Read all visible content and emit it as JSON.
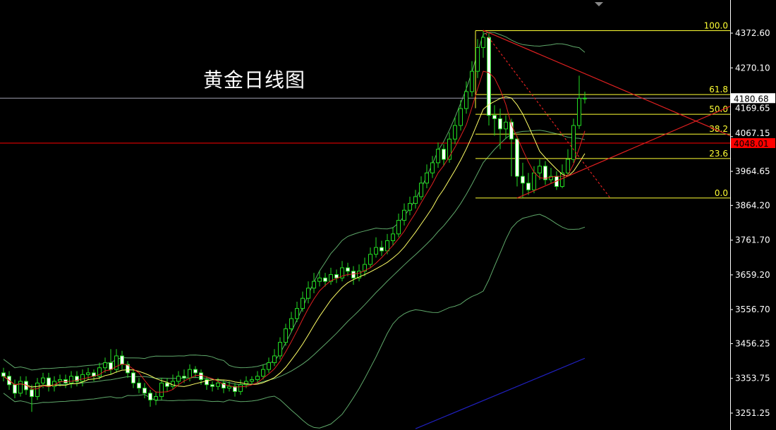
{
  "chart_data": {
    "type": "candlestick",
    "title": "黄金日线图",
    "y_ticks": [
      "4372.60",
      "4270.10",
      "4169.65",
      "4067.15",
      "3964.65",
      "3864.20",
      "3761.70",
      "3659.20",
      "3556.70",
      "3456.25",
      "3353.75",
      "3251.25"
    ],
    "ylim": [
      3220,
      4420
    ],
    "open": [
      3370,
      3360,
      3335,
      3310,
      3345,
      3320,
      3300,
      3340,
      3355,
      3330,
      3345,
      3350,
      3340,
      3360,
      3345,
      3365,
      3370,
      3360,
      3385,
      3400,
      3380,
      3420,
      3395,
      3370,
      3340,
      3325,
      3310,
      3290,
      3300,
      3340,
      3330,
      3345,
      3360,
      3355,
      3380,
      3370,
      3350,
      3335,
      3330,
      3340,
      3325,
      3330,
      3315,
      3335,
      3345,
      3350,
      3360,
      3380,
      3400,
      3420,
      3460,
      3500,
      3530,
      3560,
      3590,
      3620,
      3640,
      3650,
      3640,
      3660,
      3650,
      3680,
      3670,
      3650,
      3670,
      3690,
      3720,
      3740,
      3730,
      3760,
      3780,
      3820,
      3850,
      3870,
      3890,
      3930,
      3960,
      3990,
      4030,
      4000,
      4060,
      4100,
      4150,
      4200,
      4260,
      4330,
      4360,
      4130,
      4120,
      4090,
      4110,
      4060,
      3950,
      3930,
      3910,
      3960,
      3980,
      3940,
      3950,
      3920,
      3960,
      4000,
      4100,
      4180
    ],
    "high": [
      3385,
      3375,
      3350,
      3360,
      3360,
      3335,
      3355,
      3370,
      3370,
      3360,
      3365,
      3365,
      3375,
      3375,
      3380,
      3385,
      3380,
      3400,
      3415,
      3440,
      3440,
      3435,
      3405,
      3380,
      3355,
      3340,
      3320,
      3315,
      3355,
      3355,
      3365,
      3375,
      3380,
      3395,
      3390,
      3380,
      3360,
      3345,
      3355,
      3350,
      3345,
      3340,
      3350,
      3360,
      3360,
      3375,
      3395,
      3415,
      3440,
      3475,
      3515,
      3550,
      3580,
      3610,
      3640,
      3665,
      3670,
      3665,
      3680,
      3675,
      3700,
      3695,
      3685,
      3690,
      3710,
      3740,
      3770,
      3760,
      3780,
      3800,
      3840,
      3870,
      3890,
      3910,
      3950,
      3985,
      4010,
      4050,
      4045,
      4080,
      4125,
      4175,
      4230,
      4290,
      4355,
      4381,
      4375,
      4160,
      4150,
      4130,
      4120,
      4070,
      3990,
      3960,
      3980,
      4000,
      3995,
      3975,
      3965,
      3985,
      4030,
      4120,
      4247,
      4200
    ],
    "low": [
      3345,
      3320,
      3295,
      3300,
      3305,
      3255,
      3290,
      3325,
      3315,
      3315,
      3330,
      3325,
      3325,
      3330,
      3330,
      3350,
      3345,
      3350,
      3370,
      3365,
      3370,
      3380,
      3355,
      3325,
      3310,
      3295,
      3270,
      3275,
      3290,
      3315,
      3320,
      3335,
      3340,
      3345,
      3355,
      3335,
      3320,
      3315,
      3320,
      3310,
      3315,
      3300,
      3305,
      3325,
      3335,
      3340,
      3350,
      3370,
      3390,
      3410,
      3450,
      3490,
      3520,
      3550,
      3575,
      3605,
      3625,
      3625,
      3630,
      3635,
      3640,
      3655,
      3630,
      3640,
      3655,
      3680,
      3710,
      3715,
      3720,
      3745,
      3770,
      3805,
      3835,
      3855,
      3880,
      3915,
      3945,
      3975,
      3980,
      3990,
      4045,
      4085,
      4135,
      4185,
      4240,
      4300,
      4100,
      4070,
      4030,
      4060,
      3950,
      3920,
      3886,
      3895,
      3900,
      3940,
      3925,
      3930,
      3910,
      3915,
      3950,
      3990,
      4090,
      4165
    ],
    "close": [
      3360,
      3335,
      3310,
      3345,
      3320,
      3300,
      3340,
      3355,
      3330,
      3345,
      3350,
      3340,
      3360,
      3345,
      3365,
      3370,
      3360,
      3385,
      3400,
      3380,
      3420,
      3395,
      3370,
      3340,
      3325,
      3310,
      3290,
      3300,
      3340,
      3330,
      3345,
      3360,
      3355,
      3380,
      3370,
      3350,
      3335,
      3330,
      3340,
      3325,
      3330,
      3315,
      3335,
      3345,
      3350,
      3360,
      3380,
      3400,
      3420,
      3460,
      3500,
      3530,
      3560,
      3590,
      3620,
      3640,
      3650,
      3640,
      3660,
      3650,
      3680,
      3670,
      3650,
      3670,
      3690,
      3720,
      3740,
      3730,
      3760,
      3780,
      3820,
      3850,
      3870,
      3890,
      3930,
      3960,
      3990,
      4030,
      4000,
      4060,
      4100,
      4150,
      4200,
      4260,
      4330,
      4360,
      4130,
      4120,
      4090,
      4110,
      4060,
      3950,
      3930,
      3910,
      3960,
      3980,
      3940,
      3950,
      3920,
      3960,
      4000,
      4100,
      4180,
      4180.68
    ],
    "indicators": {
      "ma_fast": {
        "period": 5,
        "color": "#e02020"
      },
      "ma_slow": {
        "period": 10,
        "color": "#ffff66"
      },
      "bollinger": {
        "period": 20,
        "k": 2,
        "color": "#5fa86a"
      },
      "long_ma": {
        "color": "#2020c0",
        "points": [
          [
            73,
            3205
          ],
          [
            103,
            3413
          ]
        ]
      }
    },
    "fibonacci": {
      "high": 4380,
      "low": 3886,
      "start_bar": 84,
      "levels": [
        {
          "ratio": 1.0,
          "label": "100.0"
        },
        {
          "ratio": 0.618,
          "label": "61.8"
        },
        {
          "ratio": 0.5,
          "label": "50.0"
        },
        {
          "ratio": 0.382,
          "label": "38.2"
        },
        {
          "ratio": 0.236,
          "label": "23.6"
        },
        {
          "ratio": 0.0,
          "label": "0.0"
        }
      ],
      "color": "#ffff33"
    },
    "trendlines": [
      {
        "from": [
          85,
          4381
        ],
        "to": [
          103,
          4253
        ],
        "extend": true,
        "style": "solid",
        "color": "#e02020"
      },
      {
        "from": [
          91,
          3886
        ],
        "to": [
          103,
          3972
        ],
        "extend": true,
        "style": "solid",
        "color": "#e02020"
      },
      {
        "from": [
          85,
          4381
        ],
        "to": [
          107.5,
          3886
        ],
        "extend": false,
        "style": "dotted",
        "color": "#e02020"
      }
    ],
    "price_lines": [
      {
        "price": 4180.68,
        "label": "4180.68",
        "color": "#a0a0b0",
        "label_bg": "#ffffff",
        "label_fg": "#000000"
      },
      {
        "price": 4048.01,
        "label": "4048.01",
        "color": "#ff0000",
        "label_bg": "#ff0000",
        "label_fg": "#000000"
      }
    ],
    "colors": {
      "background": "#000000",
      "candle_outline": "#22dd22",
      "bear_body": "#ffffff",
      "bull_body": "#000000",
      "axis": "#ffffff"
    }
  }
}
